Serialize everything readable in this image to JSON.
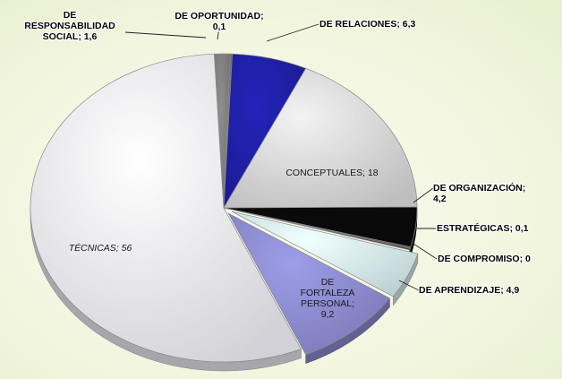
{
  "chart_data": {
    "type": "pie",
    "style": "3d",
    "categories": [
      "DE OPORTUNIDAD",
      "DE RELACIONES",
      "CONCEPTUALES",
      "DE ORGANIZACIÓN",
      "ESTRATÉGICAS",
      "DE COMPROMISO",
      "DE APRENDIZAJE",
      "DE FORTALEZA PERSONAL",
      "TÉCNICAS",
      "DE RESPONSABILIDAD SOCIAL"
    ],
    "values": [
      0.1,
      6.3,
      18,
      4.2,
      0.1,
      0,
      4.9,
      9.2,
      56,
      1.6
    ],
    "colors": [
      "#6e6e6e",
      "#1f1fa6",
      "#d9d9d9",
      "#0a0a0a",
      "#5a5a5a",
      "#3a3a3a",
      "#d7eef0",
      "#8c8cd0",
      "#ededf4",
      "#7f7f7f"
    ],
    "data_labels": [
      {
        "lines": [
          "DE OPORTUNIDAD;",
          "0,1"
        ],
        "inside": false
      },
      {
        "lines": [
          "DE RELACIONES; 6,3"
        ],
        "inside": false
      },
      {
        "lines": [
          "CONCEPTUALES; 18"
        ],
        "inside": true
      },
      {
        "lines": [
          "DE ORGANIZACIÓN;",
          "4,2"
        ],
        "inside": false
      },
      {
        "lines": [
          "ESTRATÉGICAS; 0,1"
        ],
        "inside": false
      },
      {
        "lines": [
          "DE COMPROMISO; 0"
        ],
        "inside": false
      },
      {
        "lines": [
          "DE APRENDIZAJE; 4,9"
        ],
        "inside": false
      },
      {
        "lines": [
          "DE",
          "FORTALEZA",
          "PERSONAL;",
          "9,2"
        ],
        "inside": true
      },
      {
        "lines": [
          "TÉCNICAS; 56"
        ],
        "inside": true
      },
      {
        "lines": [
          "DE",
          "RESPONSABILIDAD",
          "SOCIAL; 1,6"
        ],
        "inside": false
      }
    ],
    "title": "",
    "legend": "none"
  }
}
